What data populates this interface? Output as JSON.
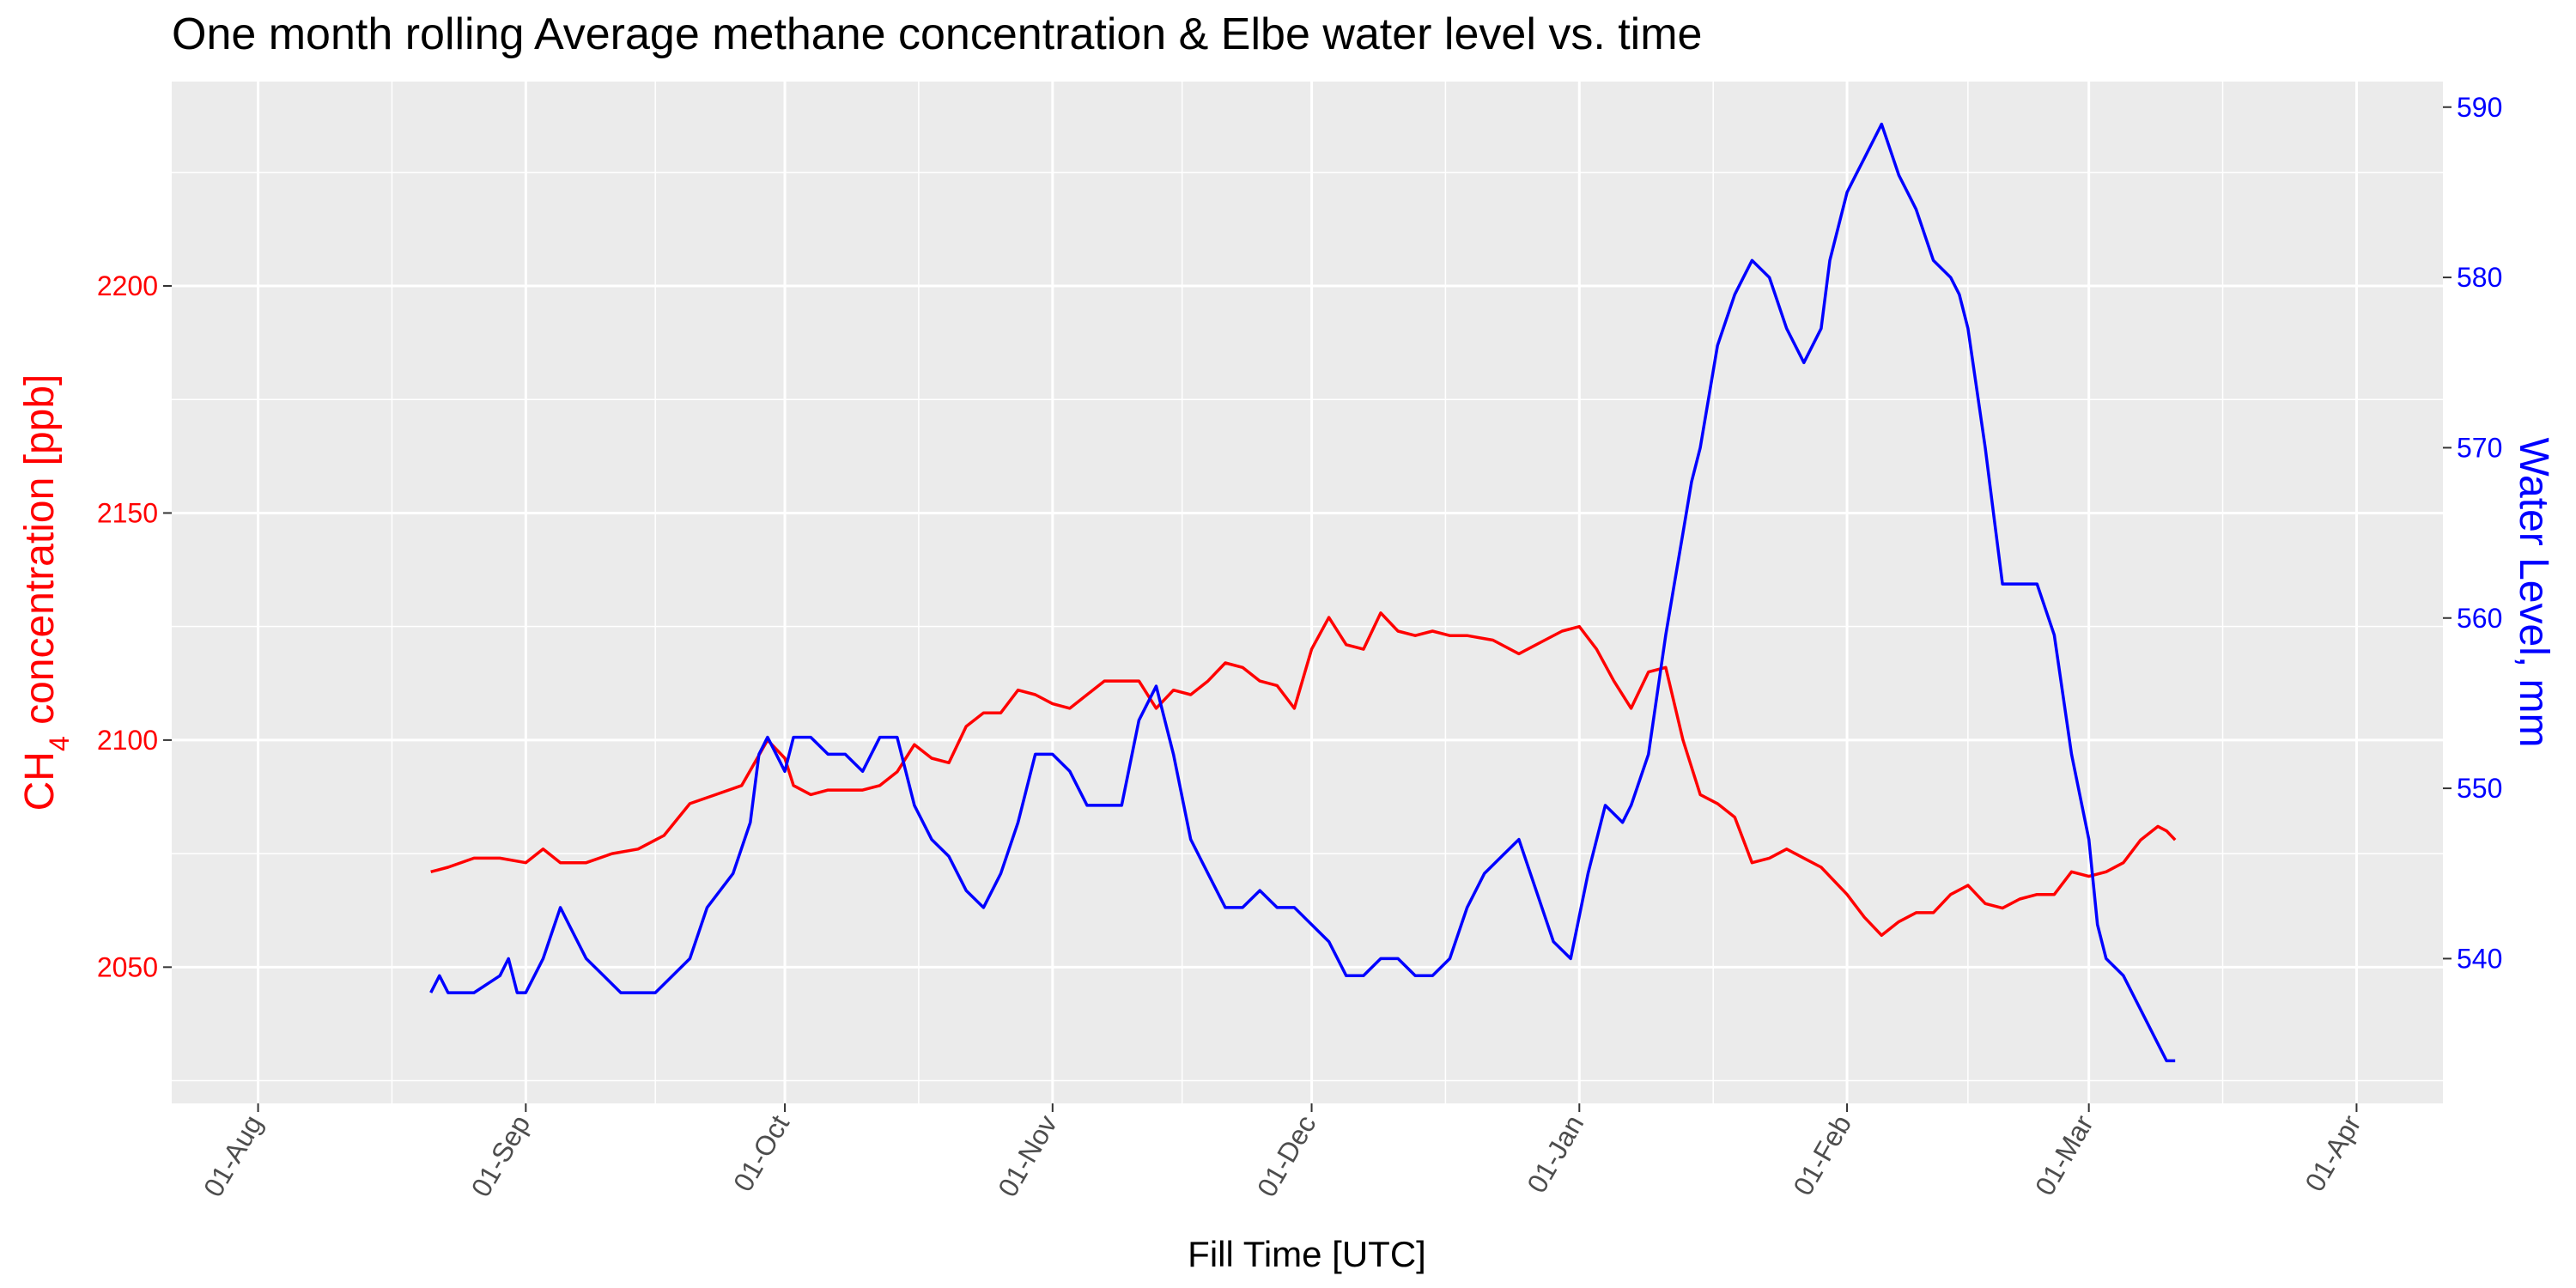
{
  "chart_data": {
    "type": "line",
    "title": "One month rolling Average methane concentration & Elbe water level vs. time",
    "xlabel": "Fill Time [UTC]",
    "ylabel_left_main": "CH",
    "ylabel_left_sub": "4",
    "ylabel_left_rest": " concentration [ppb]",
    "ylabel_right": "Water Level, mm",
    "x_ticks": [
      "01-Aug",
      "01-Sep",
      "01-Oct",
      "01-Nov",
      "01-Dec",
      "01-Jan",
      "01-Feb",
      "01-Mar",
      "01-Apr"
    ],
    "y_left_ticks": [
      2050,
      2100,
      2150,
      2200
    ],
    "y_right_ticks": [
      540,
      550,
      560,
      570,
      580,
      590
    ],
    "x_range_days": [
      -10,
      253
    ],
    "x_tick_days": [
      0,
      31,
      61,
      92,
      122,
      153,
      184,
      212,
      243
    ],
    "y_left_range": [
      2020,
      2245
    ],
    "y_right_range": [
      531.5,
      591.5
    ],
    "colors": {
      "ch4": "#ff0000",
      "water": "#0000ff",
      "panel": "#ebebeb",
      "grid": "#ffffff"
    },
    "series": [
      {
        "axis": "left",
        "x": [
          20,
          22,
          25,
          28,
          31,
          33,
          35,
          38,
          41,
          44,
          47,
          50,
          53,
          56,
          59,
          61,
          62,
          64,
          66,
          70,
          72,
          74,
          76,
          78,
          80,
          82,
          84,
          86,
          88,
          90,
          92,
          94,
          96,
          98,
          100,
          102,
          104,
          106,
          108,
          110,
          112,
          114,
          116,
          118,
          120,
          122,
          124,
          126,
          128,
          130,
          132,
          134,
          136,
          138,
          140,
          143,
          146,
          149,
          151,
          153,
          155,
          157,
          159,
          161,
          163,
          165,
          167,
          169,
          171,
          173,
          175,
          177,
          179,
          181,
          184,
          186,
          188,
          190,
          192,
          194,
          196,
          198,
          200,
          202,
          204,
          206,
          208,
          210,
          212,
          214,
          216,
          218,
          220,
          221,
          222
        ],
        "y": [
          2071,
          2072,
          2074,
          2074,
          2073,
          2076,
          2073,
          2073,
          2075,
          2076,
          2079,
          2086,
          2088,
          2090,
          2100,
          2096,
          2090,
          2088,
          2089,
          2089,
          2090,
          2093,
          2099,
          2096,
          2095,
          2103,
          2106,
          2106,
          2111,
          2110,
          2108,
          2107,
          2110,
          2113,
          2113,
          2113,
          2107,
          2111,
          2110,
          2113,
          2117,
          2116,
          2113,
          2112,
          2107,
          2120,
          2127,
          2121,
          2120,
          2128,
          2124,
          2123,
          2124,
          2123,
          2123,
          2122,
          2119,
          2122,
          2124,
          2125,
          2120,
          2113,
          2107,
          2115,
          2116,
          2100,
          2088,
          2086,
          2083,
          2073,
          2074,
          2076,
          2074,
          2072,
          2066,
          2061,
          2057,
          2060,
          2062,
          2062,
          2066,
          2068,
          2064,
          2063,
          2065,
          2066,
          2066,
          2071,
          2070,
          2071,
          2073,
          2078,
          2081,
          2080,
          2078
        ]
      },
      {
        "axis": "right",
        "x": [
          20,
          21,
          22,
          25,
          28,
          29,
          30,
          31,
          33,
          35,
          36,
          38,
          40,
          42,
          44,
          46,
          48,
          50,
          52,
          55,
          57,
          58,
          59,
          60,
          61,
          62,
          64,
          66,
          68,
          70,
          72,
          74,
          76,
          77,
          78,
          80,
          82,
          84,
          86,
          88,
          90,
          92,
          94,
          96,
          98,
          100,
          102,
          104,
          106,
          108,
          110,
          112,
          114,
          116,
          118,
          120,
          122,
          124,
          126,
          128,
          130,
          132,
          134,
          136,
          138,
          140,
          142,
          144,
          146,
          148,
          150,
          152,
          154,
          156,
          158,
          159,
          161,
          163,
          164,
          165,
          166,
          167,
          169,
          171,
          173,
          175,
          177,
          179,
          181,
          182,
          184,
          185,
          186,
          188,
          190,
          191,
          192,
          194,
          196,
          197,
          198,
          200,
          201,
          202,
          204,
          206,
          208,
          210,
          212,
          213,
          214,
          216,
          218,
          220,
          221,
          222
        ],
        "y": [
          538,
          539,
          538,
          538,
          539,
          540,
          538,
          538,
          540,
          543,
          542,
          540,
          539,
          538,
          538,
          538,
          539,
          540,
          543,
          545,
          548,
          552,
          553,
          552,
          551,
          553,
          553,
          552,
          552,
          551,
          553,
          553,
          549,
          548,
          547,
          546,
          544,
          543,
          545,
          548,
          552,
          552,
          551,
          549,
          549,
          549,
          554,
          556,
          552,
          547,
          545,
          543,
          543,
          544,
          543,
          543,
          542,
          541,
          539,
          539,
          540,
          540,
          539,
          539,
          540,
          543,
          545,
          546,
          547,
          544,
          541,
          540,
          545,
          549,
          548,
          549,
          552,
          559,
          562,
          565,
          568,
          570,
          576,
          579,
          581,
          580,
          577,
          575,
          577,
          581,
          585,
          586,
          587,
          589,
          586,
          585,
          584,
          581,
          580,
          579,
          577,
          570,
          566,
          562,
          562,
          562,
          559,
          552,
          547,
          542,
          540,
          539,
          537,
          535,
          534,
          534
        ]
      }
    ]
  }
}
